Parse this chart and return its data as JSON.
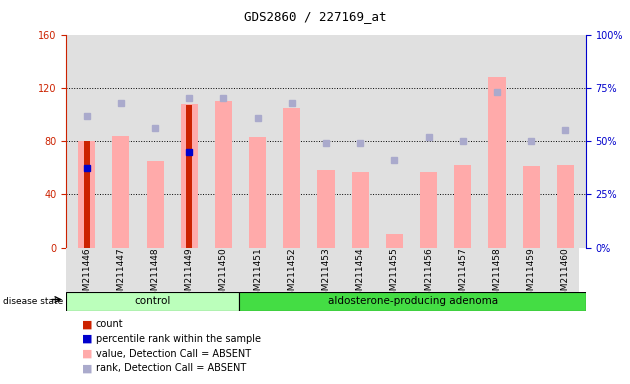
{
  "title": "GDS2860 / 227169_at",
  "samples": [
    "GSM211446",
    "GSM211447",
    "GSM211448",
    "GSM211449",
    "GSM211450",
    "GSM211451",
    "GSM211452",
    "GSM211453",
    "GSM211454",
    "GSM211455",
    "GSM211456",
    "GSM211457",
    "GSM211458",
    "GSM211459",
    "GSM211460"
  ],
  "value_absent": [
    80,
    84,
    65,
    108,
    110,
    83,
    105,
    58,
    57,
    10,
    57,
    62,
    128,
    61,
    62
  ],
  "rank_absent_pct": [
    62,
    68,
    56,
    70,
    70,
    61,
    68,
    49,
    49,
    41,
    52,
    50,
    73,
    50,
    55
  ],
  "count_values": [
    80,
    0,
    0,
    107,
    0,
    0,
    0,
    0,
    0,
    0,
    0,
    0,
    0,
    0,
    0
  ],
  "percentile_values": [
    60,
    0,
    0,
    72,
    0,
    0,
    0,
    0,
    0,
    0,
    0,
    0,
    0,
    0,
    0
  ],
  "ylim_left": [
    0,
    160
  ],
  "ylim_right": [
    0,
    100
  ],
  "yticks_left": [
    0,
    40,
    80,
    120,
    160
  ],
  "yticks_right": [
    0,
    25,
    50,
    75,
    100
  ],
  "ytick_labels_left": [
    "0",
    "40",
    "80",
    "120",
    "160"
  ],
  "ytick_labels_right": [
    "0%",
    "25%",
    "50%",
    "75%",
    "100%"
  ],
  "control_samples": 5,
  "disease_label": "disease state",
  "group1_label": "control",
  "group2_label": "aldosterone-producing adenoma",
  "legend_items": [
    {
      "label": "count",
      "color": "#cc2200"
    },
    {
      "label": "percentile rank within the sample",
      "color": "#0000cc"
    },
    {
      "label": "value, Detection Call = ABSENT",
      "color": "#ffaaaa"
    },
    {
      "label": "rank, Detection Call = ABSENT",
      "color": "#aaaacc"
    }
  ],
  "bar_color_value": "#ffaaaa",
  "bar_color_count": "#cc2200",
  "dot_color_rank": "#aaaacc",
  "dot_color_percentile": "#0000cc",
  "bg_color_plot": "#e0e0e0",
  "bg_color_fig": "#ffffff",
  "group1_bg": "#bbffbb",
  "group2_bg": "#44dd44",
  "grid_color": "black",
  "axis_left_color": "#cc2200",
  "axis_right_color": "#0000cc"
}
